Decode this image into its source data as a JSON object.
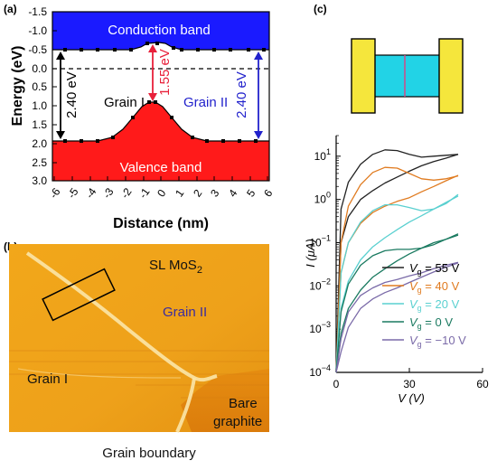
{
  "panels": {
    "a": "(a)",
    "b": "(b)",
    "c": "(c)"
  },
  "colors": {
    "conduction": "#1a1aff",
    "valence": "#ff1a1a",
    "arrow_red": "#e8203a",
    "arrow_blue": "#2222cc",
    "stm_bg": "#f0a418",
    "device_pad": "#f5e63c",
    "device_channel": "#22d3e6",
    "vg55": "#222222",
    "vg40": "#e07b20",
    "vg20": "#5ad0d0",
    "vg0": "#1a7a60",
    "vgm10": "#7a6aa8"
  },
  "panel_a": {
    "ylabel": "Energy (eV)",
    "xlabel": "Distance (nm)",
    "conduction_label": "Conduction band",
    "valence_label": "Valence band",
    "grain1": "Grain I",
    "grain2": "Grain II",
    "gap_left": "2.40 eV",
    "gap_center": "1.55 eV",
    "gap_right": "2.40 eV",
    "yticks": [
      "-1.5",
      "-1.0",
      "-0.5",
      "0.0",
      "0.5",
      "1.0",
      "1.5",
      "2.0",
      "2.5",
      "3.0"
    ],
    "xticks": [
      "-6",
      "-5",
      "-4",
      "-3",
      "-2",
      "-1",
      "0",
      "1",
      "2",
      "3",
      "4",
      "5",
      "6"
    ]
  },
  "panel_b": {
    "sl_label_pre": "SL MoS",
    "sl_label_sub": "2",
    "grain2": "Grain II",
    "grain1": "Grain I",
    "bare1": "Bare",
    "bare2": "graphite",
    "boundary": "Grain boundary"
  },
  "chart_data": {
    "type": "line",
    "xlabel": "V (V)",
    "ylabel": "I (μA)",
    "xlim": [
      0,
      60
    ],
    "ylim": [
      0.0001,
      30
    ],
    "yscale": "log",
    "xticks": [
      "0",
      "30",
      "60"
    ],
    "yticks": [
      "10^-4",
      "10^-3",
      "10^-2",
      "10^-1",
      "10^0",
      "10^1"
    ],
    "legend": [
      {
        "pre": "V",
        "sub": "g",
        "val": " = 55 V"
      },
      {
        "pre": "V",
        "sub": "g",
        "val": " = 40 V"
      },
      {
        "pre": "V",
        "sub": "g",
        "val": " = 20 V"
      },
      {
        "pre": "V",
        "sub": "g",
        "val": " = 0 V"
      },
      {
        "pre": "V",
        "sub": "g",
        "val": " = −10 V"
      }
    ],
    "series": [
      {
        "color": "#222222",
        "x": [
          0,
          2,
          5,
          10,
          15,
          20,
          25,
          30,
          35,
          40,
          45,
          50
        ],
        "y": [
          0.0001,
          0.6,
          2.5,
          6.5,
          11,
          14,
          13.5,
          11,
          9.5,
          10,
          10.5,
          11
        ]
      },
      {
        "color": "#222222",
        "x": [
          0,
          2,
          5,
          10,
          15,
          20,
          25,
          30,
          35,
          40,
          45,
          50
        ],
        "y": [
          0.0001,
          0.1,
          0.4,
          1.0,
          1.6,
          2.4,
          3.3,
          4.5,
          6,
          7.5,
          9,
          11
        ]
      },
      {
        "color": "#e07b20",
        "x": [
          0,
          2,
          5,
          10,
          15,
          20,
          25,
          30,
          35,
          40,
          45,
          50
        ],
        "y": [
          0.0001,
          0.1,
          0.7,
          2.2,
          4.2,
          5.5,
          5.3,
          4.0,
          3.0,
          2.8,
          3.0,
          3.5
        ]
      },
      {
        "color": "#e07b20",
        "x": [
          0,
          2,
          5,
          10,
          15,
          20,
          25,
          30,
          35,
          40,
          45,
          50
        ],
        "y": [
          0.0001,
          0.02,
          0.1,
          0.28,
          0.5,
          0.7,
          0.9,
          1.1,
          1.5,
          2.0,
          2.7,
          3.6
        ]
      },
      {
        "color": "#5ad0d0",
        "x": [
          0,
          2,
          5,
          10,
          15,
          20,
          25,
          30,
          35,
          40,
          45,
          50
        ],
        "y": [
          0.0001,
          0.02,
          0.1,
          0.3,
          0.55,
          0.75,
          0.75,
          0.65,
          0.55,
          0.6,
          0.8,
          1.3
        ]
      },
      {
        "color": "#5ad0d0",
        "x": [
          0,
          2,
          5,
          10,
          15,
          20,
          25,
          30,
          35,
          40,
          45,
          50
        ],
        "y": [
          0.0001,
          0.003,
          0.013,
          0.04,
          0.08,
          0.13,
          0.2,
          0.3,
          0.42,
          0.6,
          0.85,
          1.2
        ]
      },
      {
        "color": "#1a7a60",
        "x": [
          0,
          2,
          5,
          10,
          15,
          20,
          25,
          30,
          35,
          40,
          45,
          50
        ],
        "y": [
          0.0001,
          0.0025,
          0.011,
          0.03,
          0.05,
          0.065,
          0.07,
          0.07,
          0.075,
          0.09,
          0.12,
          0.16
        ]
      },
      {
        "color": "#1a7a60",
        "x": [
          0,
          2,
          5,
          10,
          15,
          20,
          25,
          30,
          35,
          40,
          45,
          50
        ],
        "y": [
          0.0001,
          0.0008,
          0.003,
          0.008,
          0.016,
          0.025,
          0.038,
          0.055,
          0.075,
          0.1,
          0.12,
          0.15
        ]
      },
      {
        "color": "#7a6aa8",
        "x": [
          0,
          2,
          5,
          10,
          15,
          20,
          25,
          30,
          35,
          40,
          45,
          50
        ],
        "y": [
          0.0001,
          0.0006,
          0.0025,
          0.006,
          0.009,
          0.012,
          0.014,
          0.017,
          0.02,
          0.025,
          0.03,
          0.035
        ]
      },
      {
        "color": "#7a6aa8",
        "x": [
          0,
          2,
          5,
          10,
          15,
          20,
          25,
          30,
          35,
          40,
          45,
          50
        ],
        "y": [
          0.0001,
          0.0003,
          0.0011,
          0.003,
          0.005,
          0.007,
          0.009,
          0.012,
          0.016,
          0.021,
          0.027,
          0.034
        ]
      }
    ]
  }
}
